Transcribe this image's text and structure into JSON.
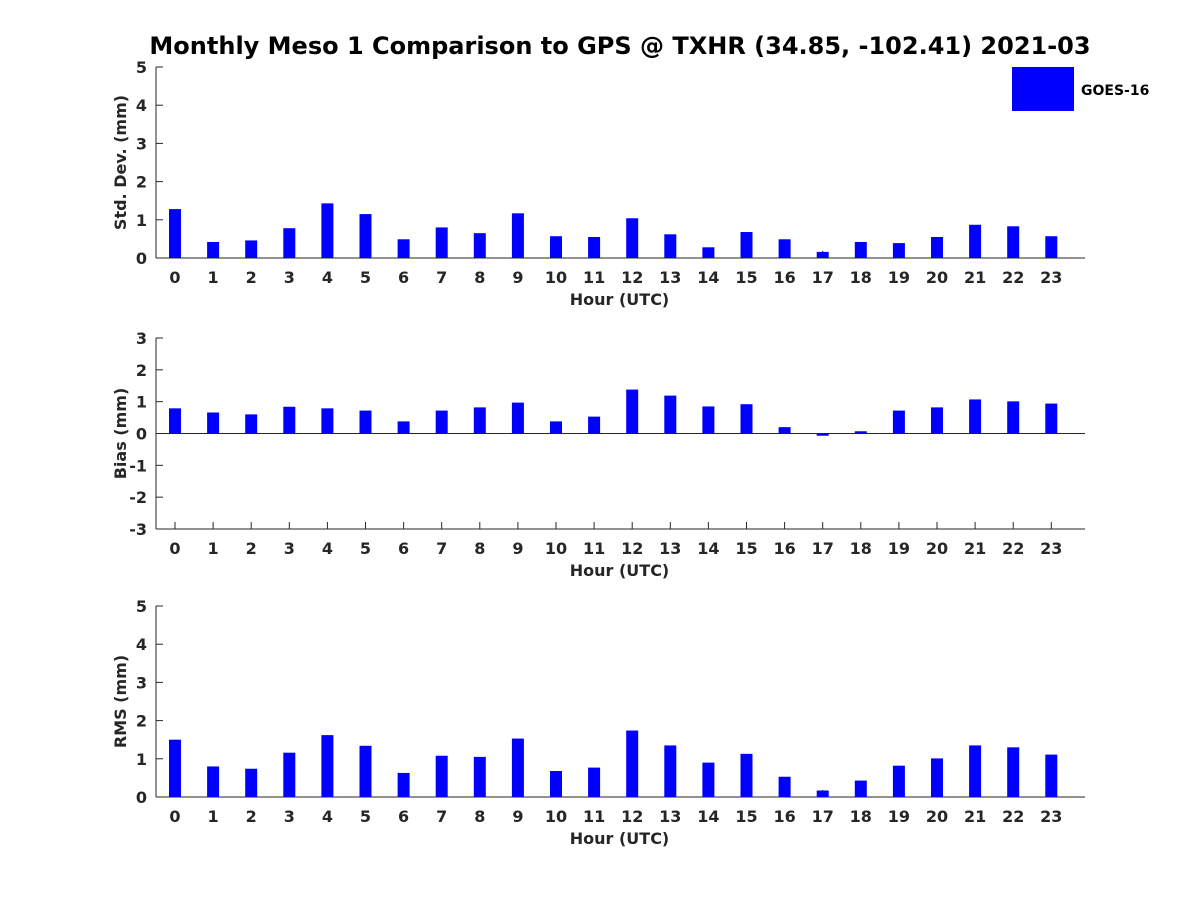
{
  "colors": {
    "bar": "#0000ff",
    "axis": "#262626",
    "error": "#000000"
  },
  "chart_data": {
    "type": "bar",
    "title": "Monthly Meso 1 Comparison to GPS @ TXHR (34.85, -102.41) 2021-03",
    "legend": {
      "entries": [
        "GOES-16"
      ],
      "placement": "top-right"
    },
    "categories": [
      "0",
      "1",
      "2",
      "3",
      "4",
      "5",
      "6",
      "7",
      "8",
      "9",
      "10",
      "11",
      "12",
      "13",
      "14",
      "15",
      "16",
      "17",
      "18",
      "19",
      "20",
      "21",
      "22",
      "23"
    ],
    "panels": [
      {
        "ylabel": "Std. Dev. (mm)",
        "xlabel": "Hour (UTC)",
        "ylim": [
          0,
          5
        ],
        "yticks": [
          "0",
          "1",
          "2",
          "3",
          "4",
          "5"
        ],
        "series": [
          {
            "name": "GOES-16",
            "values": [
              1.28,
              0.42,
              0.46,
              0.78,
              1.43,
              1.15,
              0.49,
              0.8,
              0.65,
              1.17,
              0.57,
              0.55,
              1.04,
              0.62,
              0.28,
              0.68,
              0.49,
              0.16,
              0.42,
              0.39,
              0.55,
              0.87,
              0.83,
              0.57
            ]
          }
        ]
      },
      {
        "ylabel": "Bias (mm)",
        "xlabel": "Hour (UTC)",
        "ylim": [
          -3,
          3
        ],
        "yticks": [
          "-3",
          "-2",
          "-1",
          "0",
          "1",
          "2",
          "3"
        ],
        "series": [
          {
            "name": "GOES-16",
            "values": [
              0.79,
              0.66,
              0.6,
              0.84,
              0.79,
              0.72,
              0.38,
              0.72,
              0.82,
              0.97,
              0.38,
              0.53,
              1.38,
              1.19,
              0.85,
              0.92,
              0.2,
              -0.07,
              0.07,
              0.72,
              0.82,
              1.07,
              1.01,
              0.94
            ]
          }
        ]
      },
      {
        "ylabel": "RMS (mm)",
        "xlabel": "Hour (UTC)",
        "ylim": [
          0,
          5
        ],
        "yticks": [
          "0",
          "1",
          "2",
          "3",
          "4",
          "5"
        ],
        "series": [
          {
            "name": "GOES-16",
            "values": [
              1.5,
              0.8,
              0.74,
              1.16,
              1.62,
              1.34,
              0.63,
              1.08,
              1.05,
              1.53,
              0.68,
              0.77,
              1.74,
              1.35,
              0.9,
              1.13,
              0.53,
              0.17,
              0.43,
              0.82,
              1.01,
              1.35,
              1.3,
              1.11
            ]
          }
        ]
      }
    ]
  }
}
